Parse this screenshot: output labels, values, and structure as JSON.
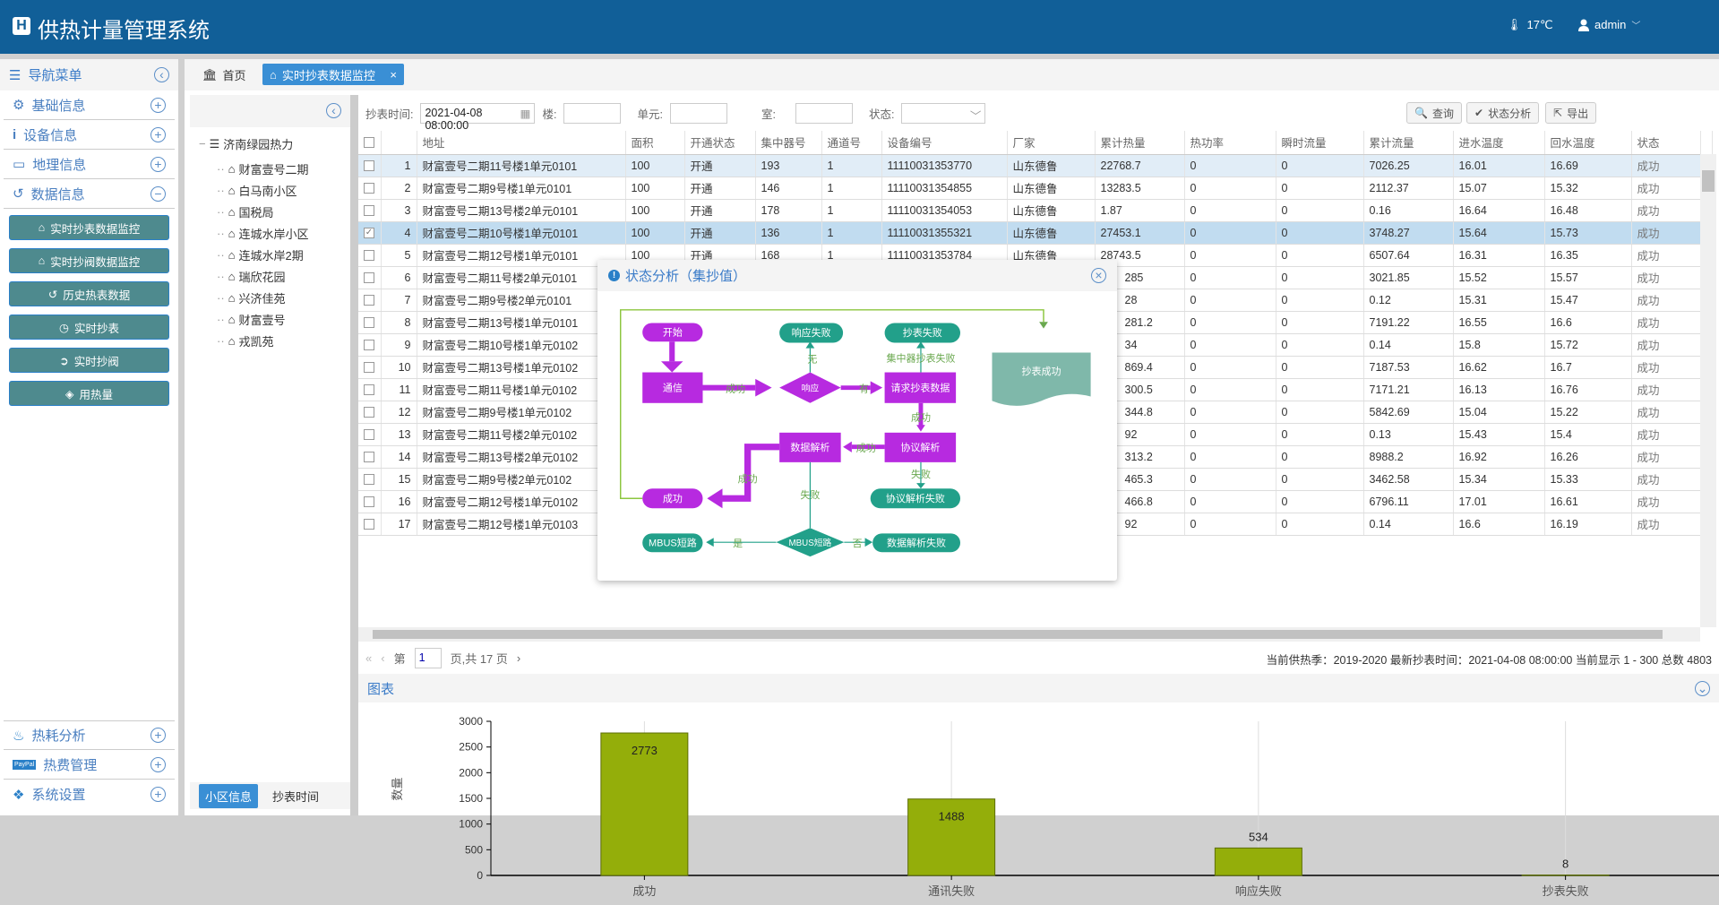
{
  "header": {
    "logo": "H",
    "title": "供热计量管理系统",
    "temperature": "17℃",
    "user": "admin"
  },
  "sidebar": {
    "title": "导航菜单",
    "items": [
      {
        "label": "基础信息",
        "icon": "gears-icon",
        "state": "+"
      },
      {
        "label": "设备信息",
        "icon": "info-icon",
        "state": "+"
      },
      {
        "label": "地理信息",
        "icon": "laptop-icon",
        "state": "+"
      },
      {
        "label": "数据信息",
        "icon": "history-icon",
        "state": "−"
      }
    ],
    "sub_items": [
      "实时抄表数据监控",
      "实时抄阀数据监控",
      "历史热表数据",
      "实时抄表",
      "实时抄阀",
      "用热量"
    ],
    "bottom_items": [
      {
        "label": "热耗分析",
        "state": "+"
      },
      {
        "label": "热费管理",
        "state": "+"
      },
      {
        "label": "系统设置",
        "state": "+"
      }
    ]
  },
  "tabs": {
    "home": "首页",
    "active": "实时抄表数据监控"
  },
  "tree": {
    "root": "济南绿园热力",
    "children": [
      "财富壹号二期",
      "白马南小区",
      "国税局",
      "连城水岸小区",
      "连城水岸2期",
      "瑞欣花园",
      "兴济佳苑",
      "财富壹号",
      "戎凯苑"
    ],
    "tab_community": "小区信息",
    "tab_time": "抄表时间"
  },
  "toolbar": {
    "time_label": "抄表时间:",
    "time_value": "2021-04-08 08:00:00",
    "building_label": "楼:",
    "unit_label": "单元:",
    "room_label": "室:",
    "status_label": "状态:",
    "query": "查询",
    "analysis": "状态分析",
    "export": "导出"
  },
  "table": {
    "columns": [
      "地址",
      "面积",
      "开通状态",
      "集中器号",
      "通道号",
      "设备编号",
      "厂家",
      "累计热量",
      "热功率",
      "瞬时流量",
      "累计流量",
      "进水温度",
      "回水温度",
      "状态"
    ],
    "rows": [
      [
        "1",
        "财富壹号二期11号楼1单元0101",
        "100",
        "开通",
        "193",
        "1",
        "11110031353770",
        "山东德鲁",
        "22768.7",
        "0",
        "0",
        "7026.25",
        "16.01",
        "16.69",
        "成功"
      ],
      [
        "2",
        "财富壹号二期9号楼1单元0101",
        "100",
        "开通",
        "146",
        "1",
        "11110031354855",
        "山东德鲁",
        "13283.5",
        "0",
        "0",
        "2112.37",
        "15.07",
        "15.32",
        "成功"
      ],
      [
        "3",
        "财富壹号二期13号楼2单元0101",
        "100",
        "开通",
        "178",
        "1",
        "11110031354053",
        "山东德鲁",
        "1.87",
        "0",
        "0",
        "0.16",
        "16.64",
        "16.48",
        "成功"
      ],
      [
        "4",
        "财富壹号二期10号楼1单元0101",
        "100",
        "开通",
        "136",
        "1",
        "11110031355321",
        "山东德鲁",
        "27453.1",
        "0",
        "0",
        "3748.27",
        "15.64",
        "15.73",
        "成功"
      ],
      [
        "5",
        "财富壹号二期12号楼1单元0101",
        "100",
        "开通",
        "168",
        "1",
        "11110031353784",
        "山东德鲁",
        "28743.5",
        "0",
        "0",
        "6507.64",
        "16.31",
        "16.35",
        "成功"
      ],
      [
        "6",
        "财富壹号二期11号楼2单元0101",
        null,
        null,
        null,
        null,
        null,
        null,
        "285",
        "0",
        "0",
        "3021.85",
        "15.52",
        "15.57",
        "成功"
      ],
      [
        "7",
        "财富壹号二期9号楼2单元0101",
        null,
        null,
        null,
        null,
        null,
        null,
        "28",
        "0",
        "0",
        "0.12",
        "15.31",
        "15.47",
        "成功"
      ],
      [
        "8",
        "财富壹号二期13号楼1单元0101",
        null,
        null,
        null,
        null,
        null,
        null,
        "281.2",
        "0",
        "0",
        "7191.22",
        "16.55",
        "16.6",
        "成功"
      ],
      [
        "9",
        "财富壹号二期10号楼1单元0102",
        null,
        null,
        null,
        null,
        null,
        null,
        "34",
        "0",
        "0",
        "0.14",
        "15.8",
        "15.72",
        "成功"
      ],
      [
        "10",
        "财富壹号二期13号楼1单元0102",
        null,
        null,
        null,
        null,
        null,
        null,
        "869.4",
        "0",
        "0",
        "7187.53",
        "16.62",
        "16.7",
        "成功"
      ],
      [
        "11",
        "财富壹号二期11号楼1单元0102",
        null,
        null,
        null,
        null,
        null,
        null,
        "300.5",
        "0",
        "0",
        "7171.21",
        "16.13",
        "16.76",
        "成功"
      ],
      [
        "12",
        "财富壹号二期9号楼1单元0102",
        null,
        null,
        null,
        null,
        null,
        null,
        "344.8",
        "0",
        "0",
        "5842.69",
        "15.04",
        "15.22",
        "成功"
      ],
      [
        "13",
        "财富壹号二期11号楼2单元0102",
        null,
        null,
        null,
        null,
        null,
        null,
        "92",
        "0",
        "0",
        "0.13",
        "15.43",
        "15.4",
        "成功"
      ],
      [
        "14",
        "财富壹号二期13号楼2单元0102",
        null,
        null,
        null,
        null,
        null,
        null,
        "313.2",
        "0",
        "0",
        "8988.2",
        "16.92",
        "16.26",
        "成功"
      ],
      [
        "15",
        "财富壹号二期9号楼2单元0102",
        null,
        null,
        null,
        null,
        null,
        null,
        "465.3",
        "0",
        "0",
        "3462.58",
        "15.34",
        "15.33",
        "成功"
      ],
      [
        "16",
        "财富壹号二期12号楼1单元0102",
        null,
        null,
        null,
        null,
        null,
        null,
        "466.8",
        "0",
        "0",
        "6796.11",
        "17.01",
        "16.61",
        "成功"
      ],
      [
        "17",
        "财富壹号二期12号楼1单元0103",
        null,
        null,
        null,
        null,
        null,
        null,
        "92",
        "0",
        "0",
        "0.14",
        "16.6",
        "16.19",
        "成功"
      ]
    ],
    "checked_row": 4,
    "highlight_row": 1
  },
  "pager": {
    "page_prefix": "第",
    "page": "1",
    "page_suffix": "页,共 17 页",
    "status": "当前供热季：2019-2020 最新抄表时间：2021-04-08 08:00:00 当前显示 1 - 300 总数 4803"
  },
  "chart_section": {
    "title": "图表"
  },
  "chart_data": {
    "type": "bar",
    "categories": [
      "成功",
      "通讯失败",
      "响应失败",
      "抄表失败"
    ],
    "values": [
      2773,
      1488,
      534,
      8
    ],
    "ylabel": "数量",
    "ylim": [
      0,
      3000
    ],
    "yticks": [
      0,
      500,
      1000,
      1500,
      2000,
      2500,
      3000
    ],
    "bar_color": "#94ae0a",
    "grid": "vertical"
  },
  "popup": {
    "title": "状态分析（集抄值）",
    "flow": {
      "start": "开始",
      "comm": "通信",
      "comm_fail": "通讯失败",
      "response": "响应",
      "response_fail": "响应失败",
      "request": "请求抄表数据",
      "read_fail": "抄表失败",
      "protocol": "协议解析",
      "protocol_fail": "协议解析失败",
      "data_parse": "数据解析",
      "success": "成功",
      "mbus": "MBUS短路",
      "mbus_short": "MBUS短路",
      "parse_fail": "数据解析失败",
      "read_success": "抄表成功",
      "lbl_success1": "成功",
      "lbl_fail1": "失败",
      "lbl_none": "无",
      "lbl_has": "有",
      "lbl_concentrator_fail": "集中器抄表失败",
      "lbl_success2": "成功",
      "lbl_success3": "成功",
      "lbl_fail2": "失败",
      "lbl_success4": "成功",
      "lbl_fail3": "失败",
      "lbl_yes": "是",
      "lbl_no": "否"
    }
  },
  "colors": {
    "header": "#115f98",
    "accent": "#3a8fd5",
    "purple": "#b72ae0",
    "teal": "#22a08a"
  }
}
